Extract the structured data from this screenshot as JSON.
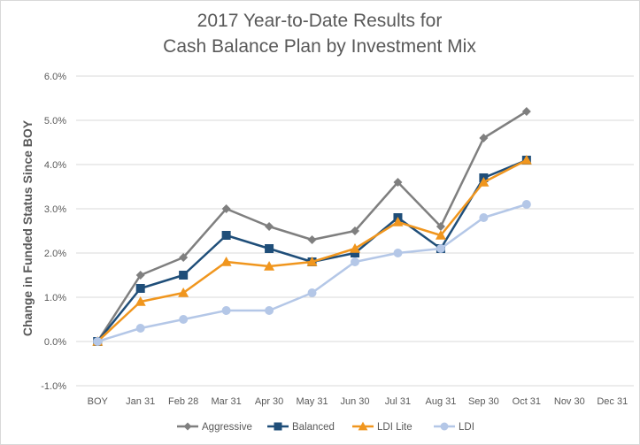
{
  "chart_data": {
    "type": "line",
    "title_lines": [
      "2017 Year-to-Date Results for",
      "Cash Balance Plan by Investment Mix"
    ],
    "ylabel": "Change in Funded Status Since BOY",
    "xlabel": "",
    "categories": [
      "BOY",
      "Jan 31",
      "Feb 28",
      "Mar 31",
      "Apr 30",
      "May 31",
      "Jun 30",
      "Jul 31",
      "Aug 31",
      "Sep 30",
      "Oct 31",
      "Nov 30",
      "Dec 31"
    ],
    "ylim": [
      -1.0,
      6.0
    ],
    "yticks": [
      -1.0,
      0.0,
      1.0,
      2.0,
      3.0,
      4.0,
      5.0,
      6.0
    ],
    "ytick_labels": [
      "-1.0%",
      "0.0%",
      "1.0%",
      "2.0%",
      "3.0%",
      "4.0%",
      "5.0%",
      "6.0%"
    ],
    "grid": "horizontal",
    "legend_position": "bottom",
    "series": [
      {
        "name": "Aggressive",
        "color": "#7f7f7f",
        "marker": "diamond",
        "values": [
          0.0,
          1.5,
          1.9,
          3.0,
          2.6,
          2.3,
          2.5,
          3.6,
          2.6,
          4.6,
          5.2,
          null,
          null
        ]
      },
      {
        "name": "Balanced",
        "color": "#1f4e79",
        "marker": "square",
        "values": [
          0.0,
          1.2,
          1.5,
          2.4,
          2.1,
          1.8,
          2.0,
          2.8,
          2.1,
          3.7,
          4.1,
          null,
          null
        ]
      },
      {
        "name": "LDI Lite",
        "color": "#f0961e",
        "marker": "triangle",
        "values": [
          0.0,
          0.9,
          1.1,
          1.8,
          1.7,
          1.8,
          2.1,
          2.7,
          2.4,
          3.6,
          4.1,
          null,
          null
        ]
      },
      {
        "name": "LDI",
        "color": "#b4c7e7",
        "marker": "circle",
        "values": [
          0.0,
          0.3,
          0.5,
          0.7,
          0.7,
          1.1,
          1.8,
          2.0,
          2.1,
          2.8,
          3.1,
          null,
          null
        ]
      }
    ]
  }
}
